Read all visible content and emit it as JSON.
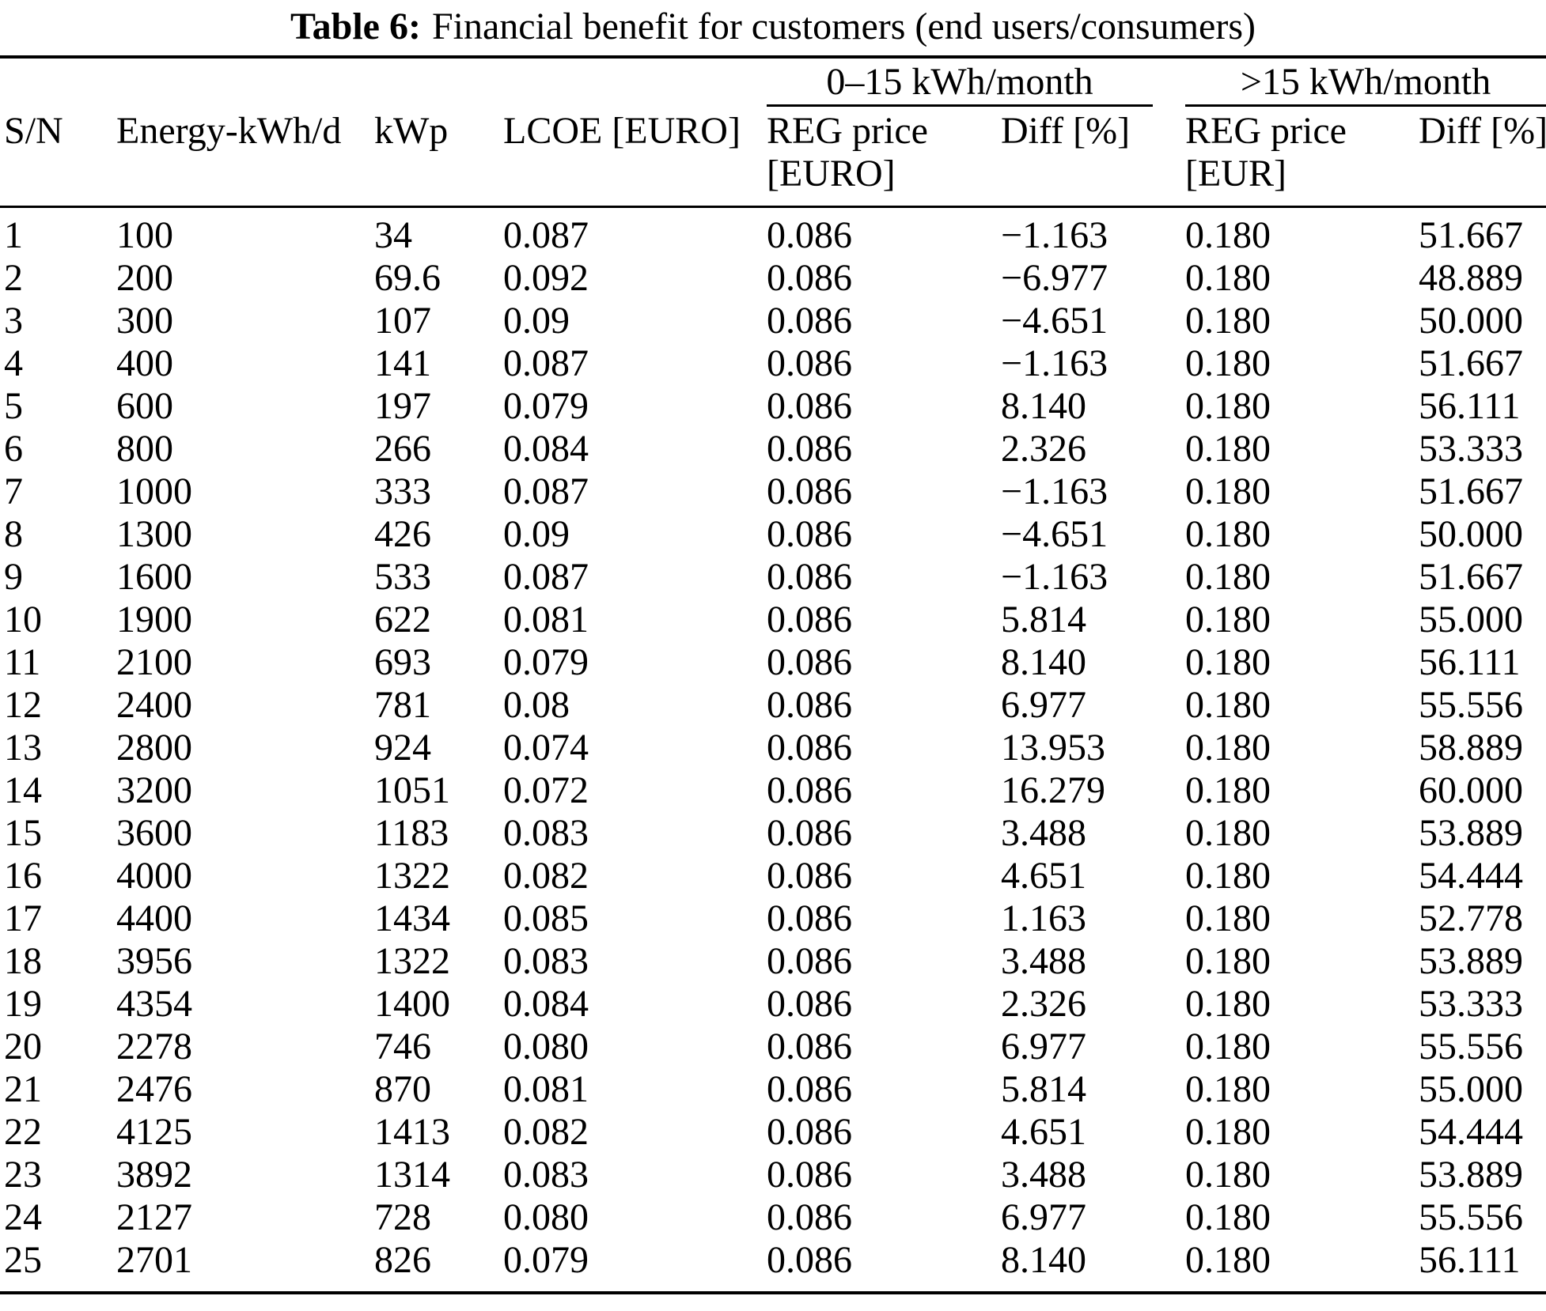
{
  "table": {
    "title_label": "Table 6:",
    "title_text": "Financial benefit for customers (end users/consumers)",
    "group_headers": [
      {
        "id": "range-0-15",
        "label": "0–15 kWh/month"
      },
      {
        "id": "range-gt-15",
        "label": ">15 kWh/month"
      }
    ],
    "columns": [
      {
        "id": "sn",
        "line1": "S/N",
        "line2": ""
      },
      {
        "id": "energy",
        "line1": "Energy-kWh/d",
        "line2": ""
      },
      {
        "id": "kwp",
        "line1": "kWp",
        "line2": ""
      },
      {
        "id": "lcoe",
        "line1": "LCOE [EURO]",
        "line2": ""
      },
      {
        "id": "reg-price-0-15",
        "line1": "REG price",
        "line2": "[EURO]"
      },
      {
        "id": "diff-0-15",
        "line1": "Diff [%]",
        "line2": ""
      },
      {
        "id": "reg-price-gt15",
        "line1": "REG price",
        "line2": "[EUR]"
      },
      {
        "id": "diff-gt15",
        "line1": "Diff [%]",
        "line2": ""
      }
    ],
    "rows": [
      [
        "1",
        "100",
        "34",
        "0.087",
        "0.086",
        "−1.163",
        "0.180",
        "51.667"
      ],
      [
        "2",
        "200",
        "69.6",
        "0.092",
        "0.086",
        "−6.977",
        "0.180",
        "48.889"
      ],
      [
        "3",
        "300",
        "107",
        "0.09",
        "0.086",
        "−4.651",
        "0.180",
        "50.000"
      ],
      [
        "4",
        "400",
        "141",
        "0.087",
        "0.086",
        "−1.163",
        "0.180",
        "51.667"
      ],
      [
        "5",
        "600",
        "197",
        "0.079",
        "0.086",
        "8.140",
        "0.180",
        "56.111"
      ],
      [
        "6",
        "800",
        "266",
        "0.084",
        "0.086",
        "2.326",
        "0.180",
        "53.333"
      ],
      [
        "7",
        "1000",
        "333",
        "0.087",
        "0.086",
        "−1.163",
        "0.180",
        "51.667"
      ],
      [
        "8",
        "1300",
        "426",
        "0.09",
        "0.086",
        "−4.651",
        "0.180",
        "50.000"
      ],
      [
        "9",
        "1600",
        "533",
        "0.087",
        "0.086",
        "−1.163",
        "0.180",
        "51.667"
      ],
      [
        "10",
        "1900",
        "622",
        "0.081",
        "0.086",
        "5.814",
        "0.180",
        "55.000"
      ],
      [
        "11",
        "2100",
        "693",
        "0.079",
        "0.086",
        "8.140",
        "0.180",
        "56.111"
      ],
      [
        "12",
        "2400",
        "781",
        "0.08",
        "0.086",
        "6.977",
        "0.180",
        "55.556"
      ],
      [
        "13",
        "2800",
        "924",
        "0.074",
        "0.086",
        "13.953",
        "0.180",
        "58.889"
      ],
      [
        "14",
        "3200",
        "1051",
        "0.072",
        "0.086",
        "16.279",
        "0.180",
        "60.000"
      ],
      [
        "15",
        "3600",
        "1183",
        "0.083",
        "0.086",
        "3.488",
        "0.180",
        "53.889"
      ],
      [
        "16",
        "4000",
        "1322",
        "0.082",
        "0.086",
        "4.651",
        "0.180",
        "54.444"
      ],
      [
        "17",
        "4400",
        "1434",
        "0.085",
        "0.086",
        "1.163",
        "0.180",
        "52.778"
      ],
      [
        "18",
        "3956",
        "1322",
        "0.083",
        "0.086",
        "3.488",
        "0.180",
        "53.889"
      ],
      [
        "19",
        "4354",
        "1400",
        "0.084",
        "0.086",
        "2.326",
        "0.180",
        "53.333"
      ],
      [
        "20",
        "2278",
        "746",
        "0.080",
        "0.086",
        "6.977",
        "0.180",
        "55.556"
      ],
      [
        "21",
        "2476",
        "870",
        "0.081",
        "0.086",
        "5.814",
        "0.180",
        "55.000"
      ],
      [
        "22",
        "4125",
        "1413",
        "0.082",
        "0.086",
        "4.651",
        "0.180",
        "54.444"
      ],
      [
        "23",
        "3892",
        "1314",
        "0.083",
        "0.086",
        "3.488",
        "0.180",
        "53.889"
      ],
      [
        "24",
        "2127",
        "728",
        "0.080",
        "0.086",
        "6.977",
        "0.180",
        "55.556"
      ],
      [
        "25",
        "2701",
        "826",
        "0.079",
        "0.086",
        "8.140",
        "0.180",
        "56.111"
      ]
    ],
    "colors": {
      "text": "#000000",
      "background": "#ffffff",
      "rule": "#000000"
    }
  }
}
